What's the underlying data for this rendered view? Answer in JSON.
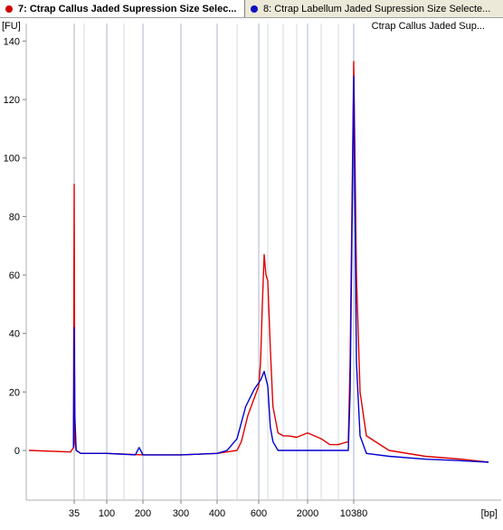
{
  "tabs": [
    {
      "label": "7: Ctrap Callus Jaded Supression Size Selec...",
      "dot_color": "#d00000",
      "active": true
    },
    {
      "label": "8: Ctrap Labellum Jaded Supression Size Selecte...",
      "dot_color": "#1010c0",
      "active": false
    }
  ],
  "colors": {
    "red_series": "#e00000",
    "blue_series": "#0000d0",
    "grid_major": "#aab4c8",
    "grid_minor": "#d4d8e0"
  },
  "chart_data": {
    "type": "line",
    "legend_entry": "Ctrap Callus Jaded Sup...",
    "legend_placement": "top-right",
    "yunit": "[FU]",
    "xunit": "[bp]",
    "y_ticks": [
      0,
      20,
      40,
      60,
      80,
      100,
      120,
      140
    ],
    "ylim": [
      -17,
      146
    ],
    "x_tick_labels": [
      "35",
      "100",
      "200",
      "300",
      "400",
      "600",
      "2000",
      "10380"
    ],
    "x_ladder_labeled": [
      35,
      100,
      200,
      300,
      400,
      600,
      2000,
      10380
    ],
    "x_ladder_unlabeled": [
      50,
      150,
      500,
      700,
      1000,
      1500,
      3000,
      7000
    ],
    "series": [
      {
        "name": "7: Ctrap Callus Jaded Supression Size Selec...",
        "color": "#e00000",
        "points": [
          [
            "10",
            0
          ],
          [
            "30",
            -0.5
          ],
          [
            "34",
            1
          ],
          [
            "35",
            91
          ],
          [
            "36",
            3
          ],
          [
            "38",
            0
          ],
          [
            "45",
            -1
          ],
          [
            "100",
            -1
          ],
          [
            "200",
            -1.5
          ],
          [
            "300",
            -1.5
          ],
          [
            "400",
            -1
          ],
          [
            "500",
            0
          ],
          [
            "520",
            3
          ],
          [
            "550",
            12
          ],
          [
            "580",
            18
          ],
          [
            "600",
            22
          ],
          [
            "620",
            30
          ],
          [
            "640",
            50
          ],
          [
            "660",
            67
          ],
          [
            "680",
            60
          ],
          [
            "700",
            58
          ],
          [
            "750",
            35
          ],
          [
            "800",
            15
          ],
          [
            "900",
            6
          ],
          [
            "1000",
            5
          ],
          [
            "1200",
            5
          ],
          [
            "1500",
            4.5
          ],
          [
            "2000",
            6
          ],
          [
            "2500",
            5
          ],
          [
            "3000",
            4
          ],
          [
            "4000",
            3
          ],
          [
            "5000",
            2
          ],
          [
            "7000",
            2
          ],
          [
            "9000",
            3
          ],
          [
            "10000",
            30
          ],
          [
            "10380",
            133
          ],
          [
            "10700",
            60
          ],
          [
            "11000",
            20
          ],
          [
            "12000",
            5
          ],
          [
            "15000",
            0
          ],
          [
            "20000",
            -2
          ],
          [
            "30000",
            -3
          ],
          [
            "40000",
            -4
          ]
        ]
      },
      {
        "name": "8: Ctrap Labellum Jaded Supression Size Selecte...",
        "color": "#0000d0",
        "points": [
          [
            "34",
            1
          ],
          [
            "35",
            42
          ],
          [
            "36",
            12
          ],
          [
            "38",
            0
          ],
          [
            "45",
            -1
          ],
          [
            "100",
            -1
          ],
          [
            "180",
            -1.5
          ],
          [
            "190",
            1
          ],
          [
            "200",
            -1.5
          ],
          [
            "300",
            -1.5
          ],
          [
            "400",
            -1
          ],
          [
            "450",
            0
          ],
          [
            "500",
            4
          ],
          [
            "540",
            15
          ],
          [
            "580",
            21
          ],
          [
            "620",
            24
          ],
          [
            "660",
            27
          ],
          [
            "700",
            22
          ],
          [
            "750",
            8
          ],
          [
            "800",
            3
          ],
          [
            "900",
            0
          ],
          [
            "1000",
            0
          ],
          [
            "2000",
            0
          ],
          [
            "4000",
            0
          ],
          [
            "7000",
            0
          ],
          [
            "9000",
            0
          ],
          [
            "10000",
            20
          ],
          [
            "10380",
            128
          ],
          [
            "10700",
            30
          ],
          [
            "11000",
            5
          ],
          [
            "12000",
            -1
          ],
          [
            "15000",
            -2
          ],
          [
            "20000",
            -3
          ],
          [
            "30000",
            -3.5
          ],
          [
            "40000",
            -4
          ]
        ]
      }
    ]
  }
}
